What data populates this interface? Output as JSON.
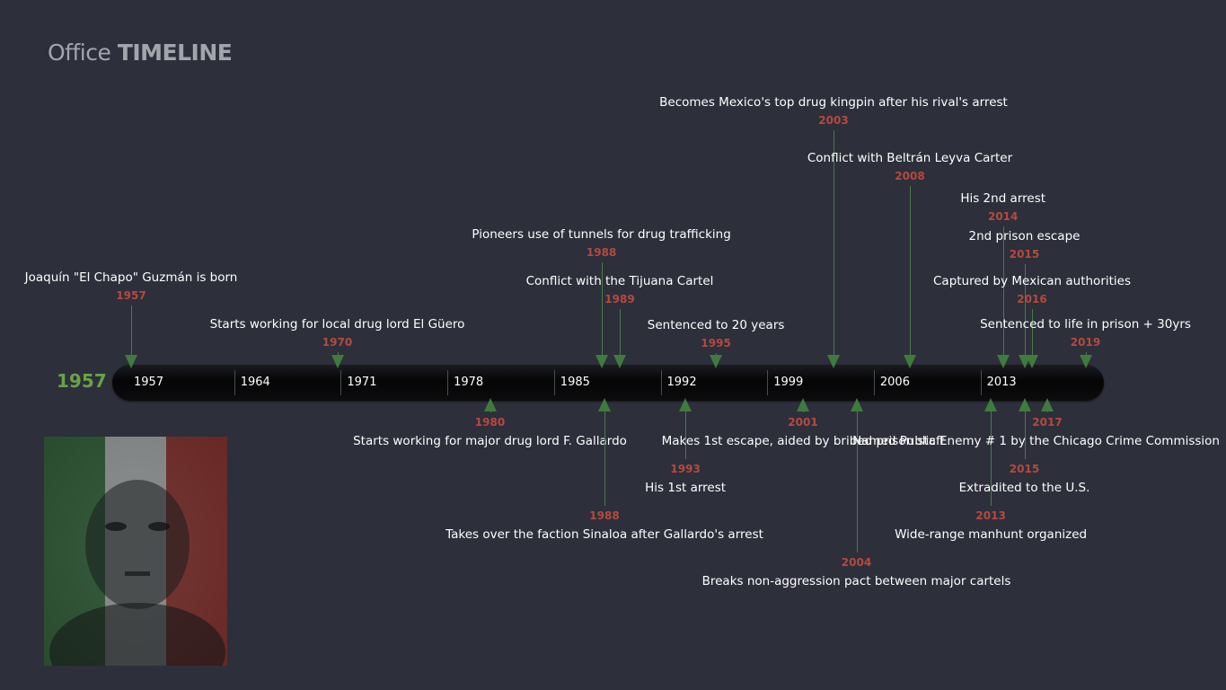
{
  "brand": {
    "word1": "Office",
    "word2": "TIMELINE"
  },
  "start_year": "1957",
  "scale": {
    "ticks": [
      "1957",
      "1964",
      "1971",
      "1978",
      "1985",
      "1992",
      "1999",
      "2006",
      "2013"
    ]
  },
  "events_above": [
    {
      "title": "Joaquín \"El Chapo\" Guzmán is born",
      "year": "1957",
      "date": 1957.0
    },
    {
      "title": "Starts working for local drug lord El Güero",
      "year": "1970",
      "date": 1970.5
    },
    {
      "title": "Pioneers use of tunnels for drug trafficking",
      "year": "1988",
      "date": 1987.8
    },
    {
      "title": "Conflict with the Tijuana Cartel",
      "year": "1989",
      "date": 1989.0
    },
    {
      "title": "Sentenced to 20 years",
      "year": "1995",
      "date": 1995.3
    },
    {
      "title": "Becomes Mexico's top drug kingpin after his rival's arrest",
      "year": "2003",
      "date": 2003.0
    },
    {
      "title": "Conflict with Beltrán Leyva Carter",
      "year": "2008",
      "date": 2008.0
    },
    {
      "title": "His 2nd arrest",
      "year": "2014",
      "date": 2014.1
    },
    {
      "title": "2nd prison escape",
      "year": "2015",
      "date": 2015.5
    },
    {
      "title": "Captured by Mexican authorities",
      "year": "2016",
      "date": 2016.0
    },
    {
      "title": "Sentenced to life in prison + 30yrs",
      "year": "2019",
      "date": 2019.5
    }
  ],
  "events_below": [
    {
      "title": "Starts working for major drug lord F. Gallardo",
      "year": "1980",
      "date": 1980.5
    },
    {
      "title": "Takes over the faction Sinaloa after Gallardo's arrest",
      "year": "1988",
      "date": 1988.0
    },
    {
      "title": "His 1st arrest",
      "year": "1993",
      "date": 1993.3
    },
    {
      "title": "Makes 1st escape, aided by bribed prison staff",
      "year": "2001",
      "date": 2001.0
    },
    {
      "title": "Breaks non-aggression pact between major cartels",
      "year": "2004",
      "date": 2004.5
    },
    {
      "title": "Wide-range manhunt organized",
      "year": "2013",
      "date": 2013.3
    },
    {
      "title": "Extradited to the U.S.",
      "year": "2015",
      "date": 2015.5
    },
    {
      "title": "Named Public Enemy # 1 by the Chicago Crime Commission",
      "year": "2017",
      "date": 2017.0
    }
  ],
  "colors": {
    "background": "#2d2f3b",
    "accent_green": "#6aa245",
    "year_red": "#b54a3e",
    "marker_green": "#3f7b3d",
    "flag_green": "#3f7a45",
    "flag_white": "#d8d8d8",
    "flag_red": "#b03a35"
  },
  "portrait": {
    "description_icon": "portrait-image"
  }
}
